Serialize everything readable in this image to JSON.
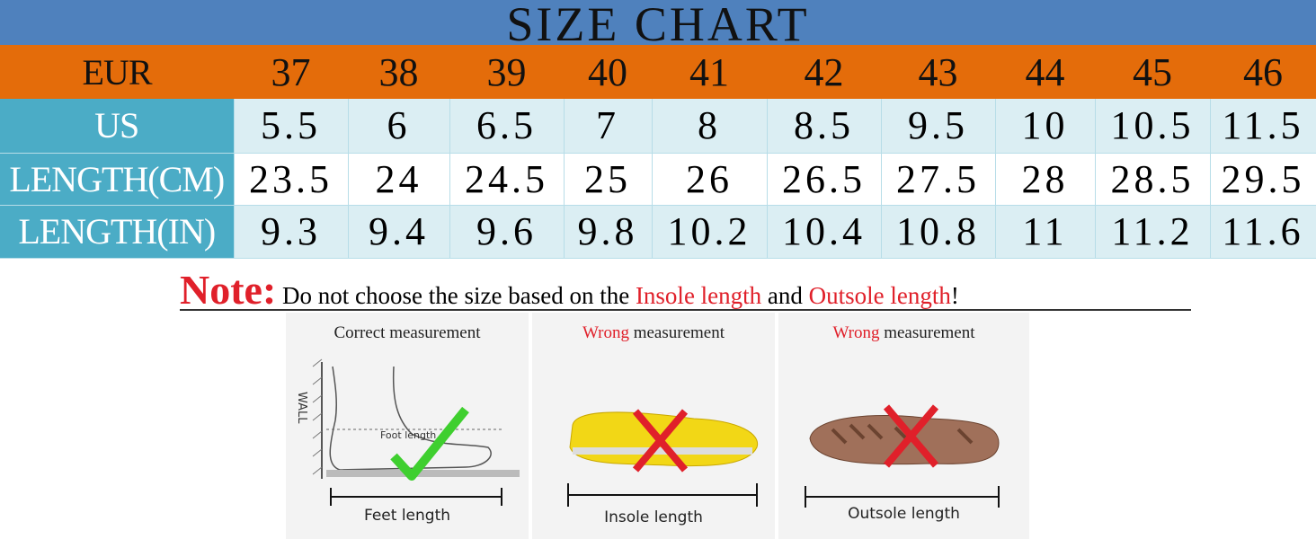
{
  "header": {
    "title": "SIZE CHART"
  },
  "table": {
    "rows": [
      [
        "EUR",
        "37",
        "38",
        "39",
        "40",
        "41",
        "42",
        "43",
        "44",
        "45",
        "46"
      ],
      [
        "US",
        "5.5",
        "6",
        "6.5",
        "7",
        "8",
        "8.5",
        "9.5",
        "10",
        "10.5",
        "11.5"
      ],
      [
        "LENGTH(CM)",
        "23.5",
        "24",
        "24.5",
        "25",
        "26",
        "26.5",
        "27.5",
        "28",
        "28.5",
        "29.5"
      ],
      [
        "LENGTH(IN)",
        "9.3",
        "9.4",
        "9.6",
        "9.8",
        "10.2",
        "10.4",
        "10.8",
        "11",
        "11.2",
        "11.6"
      ]
    ]
  },
  "note": {
    "label": "Note:",
    "parts": [
      "Do not choose the size based on the",
      "Insole length",
      "and",
      "Outsole length",
      "!"
    ]
  },
  "panels": [
    {
      "title": "Correct measurement",
      "wall": "WALL",
      "inner": "Foot length",
      "caption": "Feet length"
    },
    {
      "highlight": "Wrong",
      "title": "measurement",
      "caption": "Insole length"
    },
    {
      "highlight": "Wrong",
      "title": "measurement",
      "caption": "Outsole length"
    }
  ]
}
